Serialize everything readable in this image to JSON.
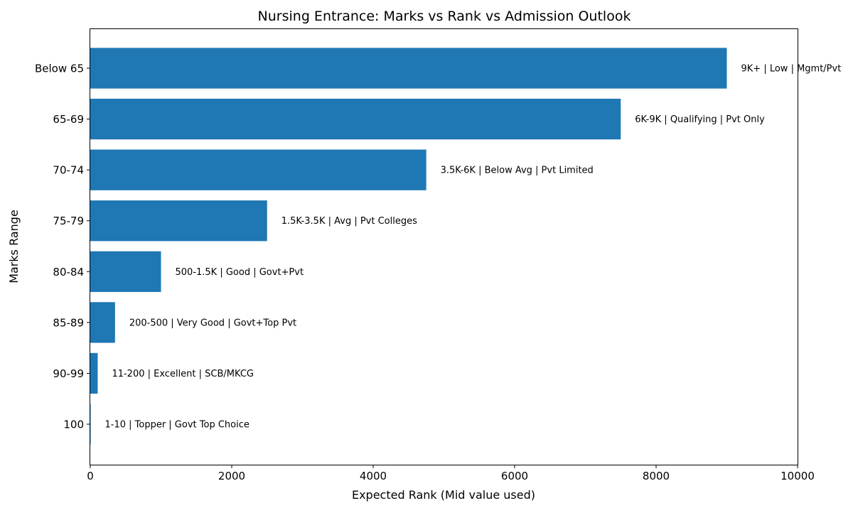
{
  "chart_data": {
    "type": "bar",
    "orientation": "horizontal",
    "title": "Nursing Entrance: Marks vs Rank vs Admission Outlook",
    "xlabel": "Expected Rank (Mid value used)",
    "ylabel": "Marks Range",
    "xlim": [
      0,
      10000
    ],
    "xticks": [
      "0",
      "2000",
      "4000",
      "6000",
      "8000",
      "10000"
    ],
    "categories": [
      "100",
      "90-99",
      "85-89",
      "80-84",
      "75-79",
      "70-74",
      "65-69",
      "Below 65"
    ],
    "values": [
      5,
      105,
      350,
      1000,
      2500,
      4750,
      7500,
      9000
    ],
    "bar_labels": [
      "1-10 | Topper | Govt Top Choice",
      "11-200 | Excellent | SCB/MKCG",
      "200-500 | Very Good | Govt+Top Pvt",
      "500-1.5K | Good | Govt+Pvt",
      "1.5K-3.5K | Avg | Pvt Colleges",
      "3.5K-6K | Below Avg | Pvt Limited",
      "6K-9K | Qualifying | Pvt Only",
      "9K+ | Low | Mgmt/Pvt"
    ],
    "bar_color": "#1f77b4",
    "grid": false,
    "legend": "none"
  }
}
